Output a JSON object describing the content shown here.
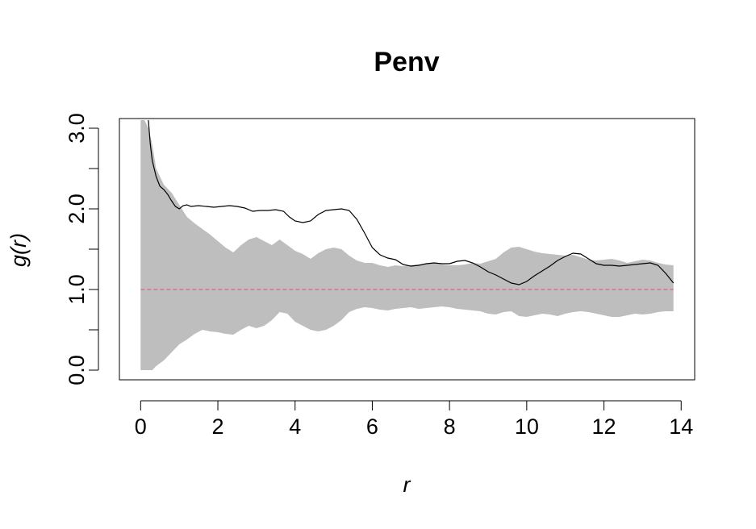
{
  "chart_data": {
    "type": "line",
    "title": "Penv",
    "xlabel": "r",
    "ylabel": "g(r)",
    "xlim": [
      -0.55,
      14.35
    ],
    "ylim": [
      -0.12,
      3.12
    ],
    "x_ticks": [
      "0",
      "2",
      "4",
      "6",
      "8",
      "10",
      "12",
      "14"
    ],
    "y_ticks": [
      "0.0",
      "",
      "1.0",
      "",
      "2.0",
      "",
      "3.0"
    ],
    "y_tick_values": [
      0.0,
      0.5,
      1.0,
      1.5,
      2.0,
      2.5,
      3.0
    ],
    "grid": false,
    "colors": {
      "envelope": "#bebebe",
      "observed": "#000000",
      "theoretical": "#df536b"
    },
    "series": [
      {
        "role": "observed",
        "x": [
          0.2,
          0.25,
          0.3,
          0.4,
          0.5,
          0.6,
          0.7,
          0.8,
          0.9,
          1.0,
          1.1,
          1.2,
          1.3,
          1.5,
          1.7,
          1.9,
          2.1,
          2.3,
          2.5,
          2.7,
          2.9,
          3.1,
          3.3,
          3.5,
          3.7,
          3.85,
          4.0,
          4.2,
          4.4,
          4.6,
          4.8,
          5.0,
          5.2,
          5.4,
          5.6,
          5.8,
          6.0,
          6.2,
          6.4,
          6.6,
          6.8,
          7.0,
          7.2,
          7.4,
          7.6,
          7.8,
          8.0,
          8.2,
          8.4,
          8.6,
          8.8,
          9.0,
          9.2,
          9.4,
          9.6,
          9.8,
          10.0,
          10.2,
          10.4,
          10.6,
          10.8,
          11.0,
          11.2,
          11.4,
          11.6,
          11.8,
          12.0,
          12.2,
          12.4,
          12.6,
          12.8,
          13.0,
          13.2,
          13.4,
          13.6,
          13.8
        ],
        "y": [
          3.1,
          2.8,
          2.6,
          2.4,
          2.28,
          2.24,
          2.18,
          2.1,
          2.03,
          2.0,
          2.04,
          2.05,
          2.03,
          2.04,
          2.03,
          2.02,
          2.03,
          2.04,
          2.03,
          2.01,
          1.97,
          1.98,
          1.98,
          1.99,
          1.97,
          1.9,
          1.85,
          1.83,
          1.85,
          1.93,
          1.98,
          1.99,
          2.0,
          1.98,
          1.87,
          1.7,
          1.52,
          1.43,
          1.39,
          1.37,
          1.31,
          1.29,
          1.3,
          1.32,
          1.33,
          1.32,
          1.32,
          1.35,
          1.36,
          1.33,
          1.28,
          1.22,
          1.18,
          1.13,
          1.08,
          1.06,
          1.1,
          1.17,
          1.23,
          1.29,
          1.36,
          1.41,
          1.45,
          1.44,
          1.38,
          1.32,
          1.3,
          1.3,
          1.29,
          1.3,
          1.31,
          1.32,
          1.33,
          1.3,
          1.2,
          1.08
        ]
      },
      {
        "role": "theoretical",
        "x": [
          0,
          13.8
        ],
        "y": [
          1.0,
          1.0
        ]
      },
      {
        "role": "envelope-upper",
        "x": [
          0.0,
          0.1,
          0.2,
          0.3,
          0.4,
          0.6,
          0.8,
          1.0,
          1.2,
          1.4,
          1.6,
          1.8,
          2.0,
          2.2,
          2.4,
          2.6,
          2.8,
          3.0,
          3.2,
          3.4,
          3.6,
          3.8,
          4.0,
          4.2,
          4.4,
          4.6,
          4.8,
          5.0,
          5.2,
          5.4,
          5.6,
          5.8,
          6.0,
          6.2,
          6.4,
          6.6,
          6.8,
          7.0,
          7.2,
          7.4,
          7.6,
          7.8,
          8.0,
          8.2,
          8.4,
          8.6,
          8.8,
          9.0,
          9.2,
          9.4,
          9.6,
          9.8,
          10.0,
          10.2,
          10.4,
          10.6,
          10.8,
          11.0,
          11.2,
          11.4,
          11.6,
          11.8,
          12.0,
          12.2,
          12.4,
          12.6,
          12.8,
          13.0,
          13.2,
          13.4,
          13.6,
          13.8
        ],
        "y": [
          3.1,
          3.1,
          3.0,
          2.8,
          2.5,
          2.3,
          2.2,
          2.05,
          1.9,
          1.82,
          1.75,
          1.68,
          1.6,
          1.52,
          1.46,
          1.55,
          1.62,
          1.65,
          1.6,
          1.55,
          1.62,
          1.55,
          1.48,
          1.44,
          1.38,
          1.45,
          1.5,
          1.52,
          1.5,
          1.42,
          1.36,
          1.33,
          1.33,
          1.3,
          1.28,
          1.3,
          1.29,
          1.3,
          1.31,
          1.32,
          1.33,
          1.31,
          1.3,
          1.3,
          1.31,
          1.33,
          1.32,
          1.35,
          1.38,
          1.46,
          1.52,
          1.53,
          1.5,
          1.47,
          1.45,
          1.44,
          1.43,
          1.42,
          1.43,
          1.4,
          1.37,
          1.36,
          1.37,
          1.38,
          1.36,
          1.33,
          1.35,
          1.37,
          1.36,
          1.33,
          1.31,
          1.3
        ]
      },
      {
        "role": "envelope-lower",
        "x": [
          0.0,
          0.1,
          0.2,
          0.3,
          0.4,
          0.6,
          0.8,
          1.0,
          1.2,
          1.4,
          1.6,
          1.8,
          2.0,
          2.2,
          2.4,
          2.6,
          2.8,
          3.0,
          3.2,
          3.4,
          3.6,
          3.8,
          4.0,
          4.2,
          4.4,
          4.6,
          4.8,
          5.0,
          5.2,
          5.4,
          5.6,
          5.8,
          6.0,
          6.2,
          6.4,
          6.6,
          6.8,
          7.0,
          7.2,
          7.4,
          7.6,
          7.8,
          8.0,
          8.2,
          8.4,
          8.6,
          8.8,
          9.0,
          9.2,
          9.4,
          9.6,
          9.8,
          10.0,
          10.2,
          10.4,
          10.6,
          10.8,
          11.0,
          11.2,
          11.4,
          11.6,
          11.8,
          12.0,
          12.2,
          12.4,
          12.6,
          12.8,
          13.0,
          13.2,
          13.4,
          13.6,
          13.8
        ],
        "y": [
          0.0,
          0.0,
          0.0,
          0.0,
          0.05,
          0.12,
          0.22,
          0.32,
          0.38,
          0.45,
          0.5,
          0.48,
          0.47,
          0.45,
          0.44,
          0.5,
          0.55,
          0.52,
          0.55,
          0.62,
          0.72,
          0.7,
          0.6,
          0.55,
          0.5,
          0.48,
          0.5,
          0.55,
          0.62,
          0.72,
          0.76,
          0.78,
          0.77,
          0.75,
          0.74,
          0.76,
          0.77,
          0.78,
          0.76,
          0.77,
          0.78,
          0.79,
          0.78,
          0.76,
          0.75,
          0.74,
          0.73,
          0.7,
          0.69,
          0.72,
          0.73,
          0.67,
          0.66,
          0.68,
          0.7,
          0.69,
          0.67,
          0.7,
          0.72,
          0.73,
          0.72,
          0.7,
          0.68,
          0.66,
          0.66,
          0.68,
          0.7,
          0.69,
          0.7,
          0.72,
          0.73,
          0.73
        ]
      }
    ]
  }
}
